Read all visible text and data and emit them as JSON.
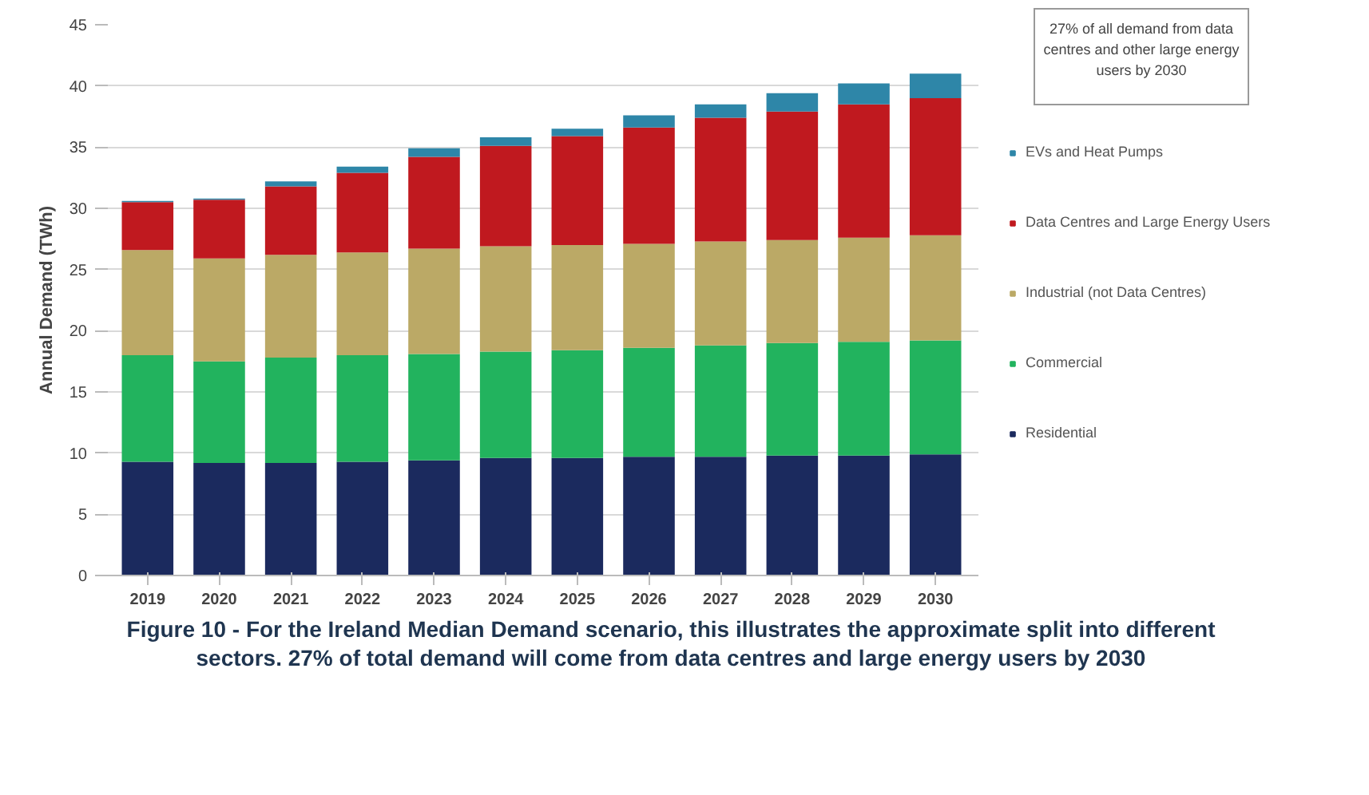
{
  "chart_data": {
    "type": "bar",
    "stacked": true,
    "categories": [
      "2019",
      "2020",
      "2021",
      "2022",
      "2023",
      "2024",
      "2025",
      "2026",
      "2027",
      "2028",
      "2029",
      "2030"
    ],
    "ylabel": "Annual Demand (TWh)",
    "ylim": [
      0,
      45
    ],
    "yticks": [
      0,
      5,
      10,
      15,
      20,
      25,
      30,
      35,
      40,
      45
    ],
    "grid": "y",
    "legend": "right",
    "series": [
      {
        "name": "Residential",
        "color": "#1b2a5e",
        "values": [
          9.3,
          9.2,
          9.2,
          9.3,
          9.4,
          9.6,
          9.6,
          9.7,
          9.7,
          9.8,
          9.8,
          9.9
        ]
      },
      {
        "name": "Commercial",
        "color": "#22b35e",
        "values": [
          8.7,
          8.3,
          8.6,
          8.7,
          8.7,
          8.7,
          8.8,
          8.9,
          9.1,
          9.2,
          9.3,
          9.3
        ]
      },
      {
        "name": "Industrial (not Data Centres)",
        "color": "#bba966",
        "values": [
          8.6,
          8.4,
          8.4,
          8.4,
          8.6,
          8.6,
          8.6,
          8.5,
          8.5,
          8.4,
          8.5,
          8.6
        ]
      },
      {
        "name": "Data Centres and Large Energy Users",
        "color": "#c0191f",
        "values": [
          3.9,
          4.8,
          5.6,
          6.5,
          7.5,
          8.2,
          8.9,
          9.5,
          10.1,
          10.5,
          10.9,
          11.2
        ]
      },
      {
        "name": "EVs and Heat Pumps",
        "color": "#2e86a8",
        "values": [
          0.1,
          0.1,
          0.4,
          0.5,
          0.7,
          0.7,
          0.6,
          1.0,
          1.1,
          1.5,
          1.7,
          2.0
        ]
      }
    ],
    "annotations": [
      "27% of all demand from data centres and other large energy users by 2030",
      "Figure 10 - For the Ireland Median Demand scenario, this illustrates the approximate split into different sectors. 27% of total demand will come from data centres and large energy users by 2030"
    ]
  }
}
